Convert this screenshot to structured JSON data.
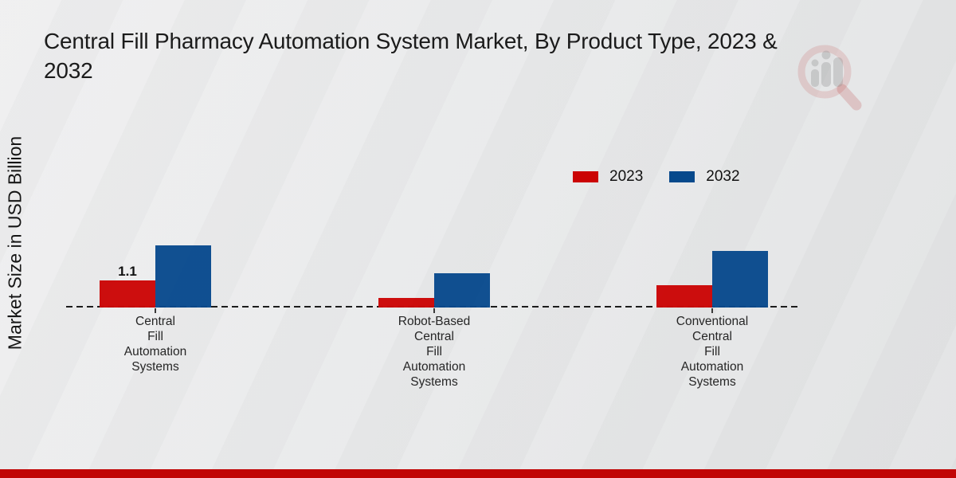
{
  "header": {
    "title": "Central Fill Pharmacy Automation System Market, By Product Type, 2023 & 2032"
  },
  "icons": {
    "watermark": "magnifier-bar-chart-logo"
  },
  "ui": {
    "background": "#e9eaeb",
    "footer_color": "#c10505",
    "baseline_color": "#1c1c1c",
    "text_color": "#1b1b1b"
  },
  "chart_data": {
    "type": "bar",
    "title": "Central Fill Pharmacy Automation System Market, By Product Type, 2023 & 2032",
    "xlabel": "",
    "ylabel": "Market Size in USD Billion",
    "categories": [
      "Central Fill Automation Systems",
      "Robot-Based Central Fill Automation Systems",
      "Conventional Central Fill Automation Systems"
    ],
    "category_lines": [
      [
        "Central",
        "Fill",
        "Automation",
        "Systems"
      ],
      [
        "Robot-Based",
        "Central",
        "Fill",
        "Automation",
        "Systems"
      ],
      [
        "Conventional",
        "Central",
        "Fill",
        "Automation",
        "Systems"
      ]
    ],
    "series": [
      {
        "name": "2023",
        "color": "#cb0404",
        "values": [
          1.1,
          0.4,
          0.9
        ],
        "data_labels": [
          "1.1",
          "",
          ""
        ]
      },
      {
        "name": "2032",
        "color": "#07498c",
        "values": [
          2.5,
          1.4,
          2.3
        ],
        "data_labels": [
          "",
          "",
          ""
        ]
      }
    ],
    "ylim": [
      0,
      2.6
    ],
    "grid": false,
    "axis_style": "dashed-baseline-only",
    "legend_position": "top-right"
  }
}
